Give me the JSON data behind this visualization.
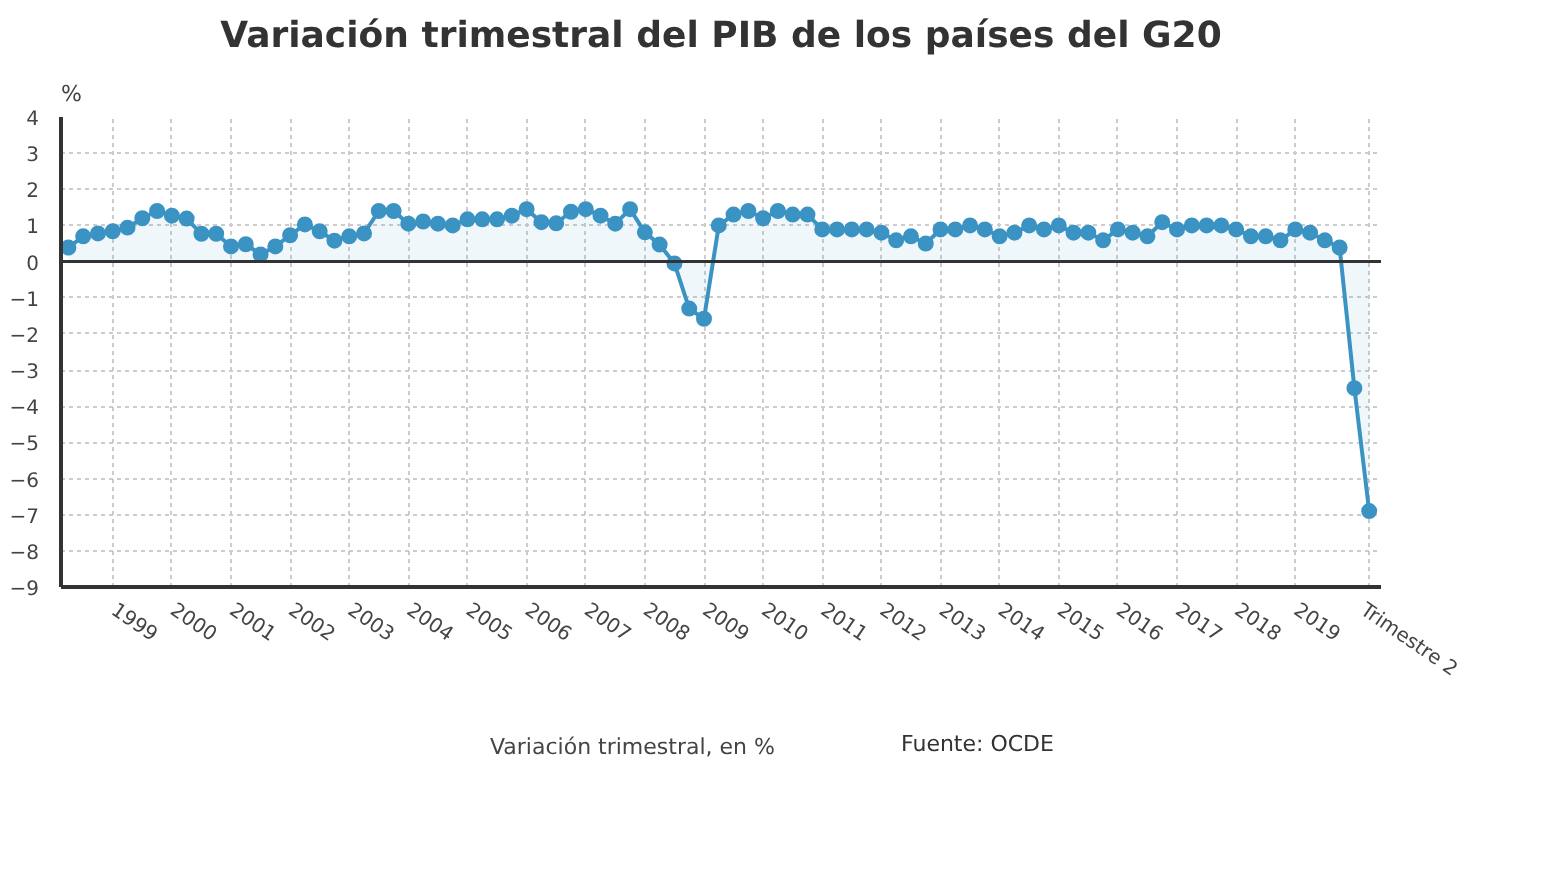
{
  "chart_data": {
    "type": "area",
    "title": "Variación trimestral del PIB de los países del G20",
    "ylabel": "%",
    "categories": [
      null,
      null,
      null,
      "1999",
      null,
      null,
      null,
      "2000",
      null,
      null,
      null,
      "2001",
      null,
      null,
      null,
      "2002",
      null,
      null,
      null,
      "2003",
      null,
      null,
      null,
      "2004",
      null,
      null,
      null,
      "2005",
      null,
      null,
      null,
      "2006",
      null,
      null,
      null,
      "2007",
      null,
      null,
      null,
      "2008",
      null,
      null,
      null,
      "2009",
      null,
      null,
      null,
      "2010",
      null,
      null,
      null,
      "2011",
      null,
      null,
      null,
      "2012",
      null,
      null,
      null,
      "2013",
      null,
      null,
      null,
      "2014",
      null,
      null,
      null,
      "2015",
      null,
      null,
      null,
      "2016",
      null,
      null,
      null,
      "2017",
      null,
      null,
      null,
      "2018",
      null,
      null,
      null,
      "2019",
      null,
      null,
      null,
      null,
      "Trimestre 2"
    ],
    "series": [
      {
        "name": "Variación trimestral, en %",
        "color": "#3a93c3",
        "values": [
          0.39,
          0.7,
          0.78,
          0.84,
          0.94,
          1.2,
          1.4,
          1.27,
          1.19,
          0.77,
          0.77,
          0.42,
          0.48,
          0.2,
          0.42,
          0.73,
          1.03,
          0.84,
          0.58,
          0.7,
          0.78,
          1.4,
          1.4,
          1.05,
          1.11,
          1.05,
          1.0,
          1.17,
          1.17,
          1.17,
          1.27,
          1.45,
          1.09,
          1.06,
          1.38,
          1.45,
          1.27,
          1.05,
          1.45,
          0.81,
          0.47,
          -0.05,
          -1.3,
          -1.58,
          1.0,
          1.3,
          1.4,
          1.2,
          1.4,
          1.3,
          1.3,
          0.89,
          0.89,
          0.89,
          0.89,
          0.8,
          0.59,
          0.7,
          0.5,
          0.89,
          0.89,
          1.0,
          0.89,
          0.7,
          0.8,
          1.0,
          0.89,
          1.0,
          0.8,
          0.8,
          0.59,
          0.89,
          0.8,
          0.7,
          1.09,
          0.89,
          1.0,
          1.0,
          1.0,
          0.89,
          0.7,
          0.7,
          0.59,
          0.89,
          0.8,
          0.59,
          0.39,
          -3.5,
          -6.9
        ]
      }
    ],
    "ylim": [
      -9,
      4
    ],
    "yticks": [
      -9,
      -8,
      -7,
      -6,
      -5,
      -4,
      -3,
      -2,
      -1,
      0,
      1,
      2,
      3,
      4
    ],
    "grid": true,
    "legend": "bottom",
    "marker": "circle",
    "line_style": "solid",
    "annotations": [
      "Fuente: OCDE"
    ]
  }
}
